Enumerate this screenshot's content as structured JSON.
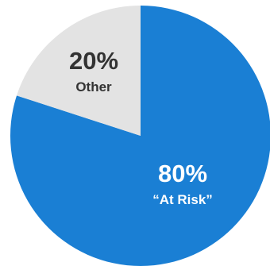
{
  "chart_data": {
    "type": "pie",
    "slices": [
      {
        "label": "“At Risk”",
        "value": 80,
        "value_label": "80%",
        "color": "#1a7fd4",
        "text_color": "#ffffff"
      },
      {
        "label": "Other",
        "value": 20,
        "value_label": "20%",
        "color": "#e3e3e3",
        "text_color": "#333333"
      }
    ],
    "start_angle": "12 o'clock",
    "direction": "clockwise",
    "legend": "none",
    "labels": "inside slices"
  }
}
